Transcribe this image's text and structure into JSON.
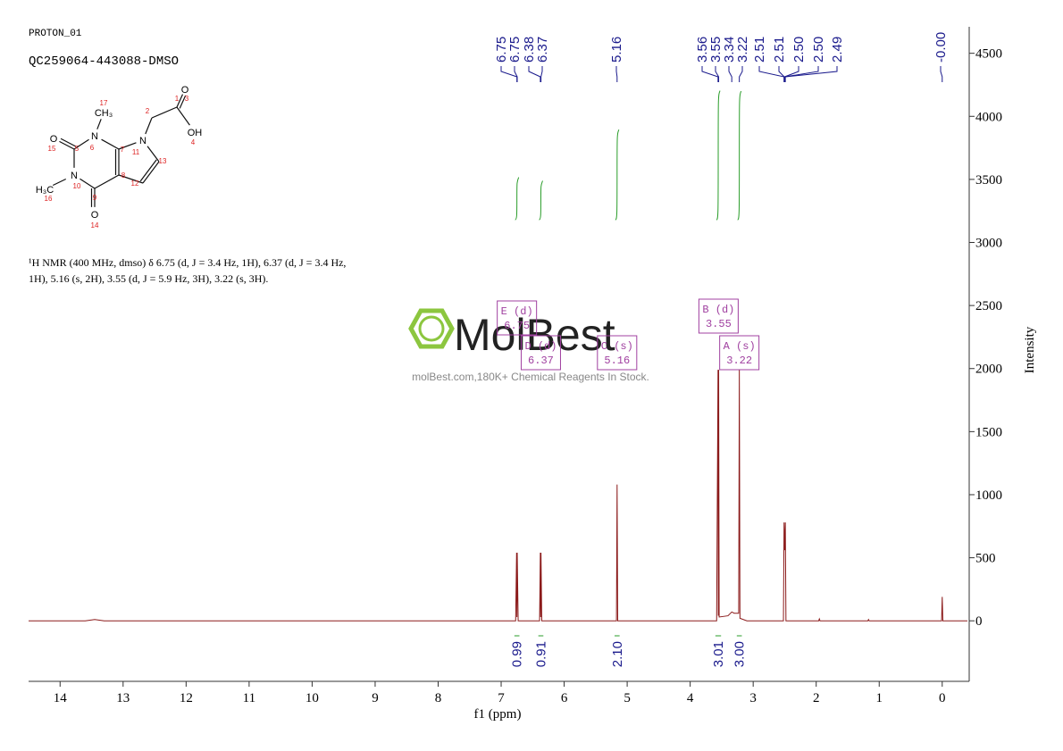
{
  "header": {
    "title": "PROTON_01",
    "sample": "QC259064-443088-DMSO"
  },
  "structure": {
    "atoms": [
      {
        "symbol": "N",
        "number": 6
      },
      {
        "number": 7
      },
      {
        "number": 8
      },
      {
        "number": 9
      },
      {
        "symbol": "N",
        "number": 10
      },
      {
        "number": 5
      },
      {
        "symbol": "N",
        "number": 11
      },
      {
        "number": 13
      },
      {
        "number": 12
      },
      {
        "symbol": "CH₃",
        "number": 17
      },
      {
        "symbol": "O",
        "number": 15
      },
      {
        "symbol": "O",
        "number": 14
      },
      {
        "symbol": "H₃C",
        "number": 16
      },
      {
        "number": 2
      },
      {
        "number": 1
      },
      {
        "symbol": "O",
        "number": 3
      },
      {
        "symbol": "OH",
        "number": 4
      }
    ]
  },
  "description": [
    "¹H NMR (400 MHz, dmso) δ 6.75 (d, J = 3.4 Hz, 1H), 6.37 (d, J = 3.4 Hz,",
    "1H), 5.16 (s, 2H), 3.55 (d, J = 5.9 Hz, 3H), 3.22 (s, 3H)."
  ],
  "watermark": {
    "brand": "MolBest",
    "tagline": "molBest.com,180K+ Chemical Reagents In Stock."
  },
  "chart_data": {
    "type": "line",
    "xlabel": "f1 (ppm)",
    "ylabel": "Intensity",
    "color": "#8b1a1a",
    "xlim": [
      14.5,
      -0.4
    ],
    "ylim": [
      -480,
      4710
    ],
    "xticks": [
      14,
      13,
      12,
      11,
      10,
      9,
      8,
      7,
      6,
      5,
      4,
      3,
      2,
      1,
      0
    ],
    "yticks": [
      0,
      500,
      1000,
      1500,
      2000,
      2500,
      3000,
      3500,
      4000,
      4500
    ],
    "x": [
      14.5,
      13.6,
      13.45,
      13.3,
      6.77,
      6.755,
      6.75,
      6.745,
      6.73,
      6.39,
      6.378,
      6.373,
      6.368,
      6.355,
      5.17,
      5.16,
      5.15,
      3.58,
      3.558,
      3.553,
      3.548,
      3.54,
      3.4,
      3.34,
      3.3,
      3.23,
      3.22,
      3.21,
      3.1,
      2.52,
      2.51,
      2.5,
      2.49,
      2.48,
      1.96,
      1.95,
      1.94,
      1.18,
      1.17,
      1.16,
      0.01,
      0,
      -0.01,
      -0.4
    ],
    "values": [
      0,
      0,
      10,
      0,
      0,
      540,
      30,
      540,
      0,
      0,
      540,
      30,
      540,
      0,
      0,
      1080,
      0,
      0,
      1990,
      40,
      1990,
      30,
      40,
      70,
      60,
      60,
      1990,
      20,
      0,
      0,
      780,
      560,
      780,
      0,
      0,
      15,
      0,
      0,
      10,
      0,
      0,
      190,
      0,
      0
    ],
    "peak_labels": [
      {
        "value": 6.75,
        "label": "6.75"
      },
      {
        "value": 6.745,
        "label": "6.75"
      },
      {
        "value": 6.378,
        "label": "6.38"
      },
      {
        "value": 6.368,
        "label": "6.37"
      },
      {
        "value": 5.16,
        "label": "5.16"
      },
      {
        "value": 3.558,
        "label": "3.56"
      },
      {
        "value": 3.548,
        "label": "3.55"
      },
      {
        "value": 3.34,
        "label": "3.34"
      },
      {
        "value": 3.22,
        "label": "3.22"
      },
      {
        "value": 2.51,
        "label": "2.51"
      },
      {
        "value": 2.508,
        "label": "2.51"
      },
      {
        "value": 2.502,
        "label": "2.50"
      },
      {
        "value": 2.498,
        "label": "2.50"
      },
      {
        "value": 2.49,
        "label": "2.49"
      },
      {
        "value": 0,
        "label": "-0.00"
      }
    ],
    "integrals": [
      {
        "from": 6.79,
        "to": 6.71,
        "value": 0.99,
        "label": "0.99"
      },
      {
        "from": 6.41,
        "to": 6.33,
        "value": 0.91,
        "label": "0.91"
      },
      {
        "from": 5.2,
        "to": 5.12,
        "value": 2.1,
        "label": "2.10"
      },
      {
        "from": 3.6,
        "to": 3.51,
        "value": 3.01,
        "label": "3.01"
      },
      {
        "from": 3.26,
        "to": 3.18,
        "value": 3,
        "label": "3.00"
      }
    ],
    "multiplets": [
      {
        "name": "E (d)",
        "shift": 6.75
      },
      {
        "name": "D (d)",
        "shift": 6.37
      },
      {
        "name": "C (s)",
        "shift": 5.16
      },
      {
        "name": "B (d)",
        "shift": 3.55
      },
      {
        "name": "A (s)",
        "shift": 3.22
      }
    ]
  }
}
